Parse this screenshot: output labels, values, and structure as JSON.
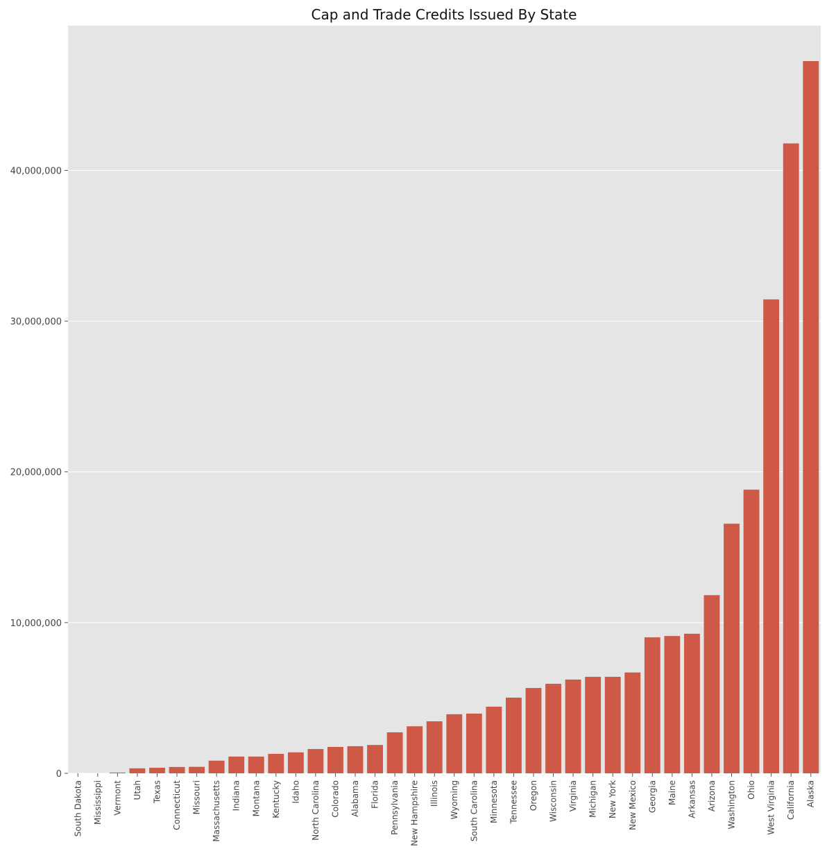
{
  "chart_data": {
    "type": "bar",
    "title": "Cap and Trade Credits Issued By State",
    "xlabel": "",
    "ylabel": "",
    "ylim": [
      0,
      49600000
    ],
    "yticks": [
      0,
      10000000,
      20000000,
      30000000,
      40000000
    ],
    "ytick_labels": [
      "0",
      "10,000,000",
      "20,000,000",
      "30,000,000",
      "40,000,000"
    ],
    "grid": true,
    "bar_color": "#cd5946",
    "background_color": "#e5e5e5",
    "categories": [
      "South Dakota",
      "Mississippi",
      "Vermont",
      "Utah",
      "Texas",
      "Connecticut",
      "Missouri",
      "Massachusetts",
      "Indiana",
      "Montana",
      "Kentucky",
      "Idaho",
      "North Carolina",
      "Colorado",
      "Alabama",
      "Florida",
      "Pennsylvania",
      "New Hampshire",
      "Illinois",
      "Wyoming",
      "South Carolina",
      "Minnesota",
      "Tennessee",
      "Oregon",
      "Wisconsin",
      "Virginia",
      "Michigan",
      "New York",
      "New Mexico",
      "Georgia",
      "Maine",
      "Arkansas",
      "Arizona",
      "Washington",
      "Ohio",
      "West Virginia",
      "California",
      "Alaska"
    ],
    "values": [
      0,
      0,
      50000,
      330000,
      370000,
      420000,
      430000,
      840000,
      1110000,
      1110000,
      1290000,
      1390000,
      1610000,
      1750000,
      1800000,
      1880000,
      2720000,
      3120000,
      3450000,
      3920000,
      3960000,
      4420000,
      5020000,
      5660000,
      5940000,
      6220000,
      6400000,
      6400000,
      6690000,
      9020000,
      9110000,
      9260000,
      11820000,
      16560000,
      18820000,
      31440000,
      41790000,
      47250000
    ]
  }
}
